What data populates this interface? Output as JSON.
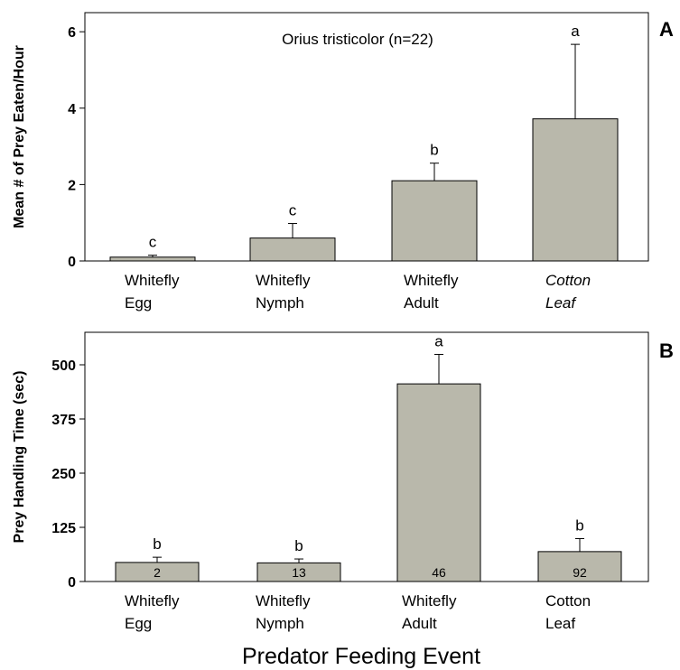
{
  "chart_data": [
    {
      "panel": "A",
      "type": "bar",
      "title": "Orius tristicolor (n=22)",
      "ylabel": "Mean # of Prey Eaten/Hour",
      "ylim": [
        0,
        6.5
      ],
      "yticks": [
        0,
        2,
        4,
        6
      ],
      "categories": [
        {
          "line1": "Whitefly",
          "line2": "Egg",
          "italic": false
        },
        {
          "line1": "Whitefly",
          "line2": "Nymph",
          "italic": false
        },
        {
          "line1": "Whitefly",
          "line2": "Adult",
          "italic": false
        },
        {
          "line1": "Cotton",
          "line2": "Leaf",
          "italic": true
        }
      ],
      "values": [
        0.1,
        0.6,
        2.1,
        3.72
      ],
      "errors": [
        0.05,
        0.38,
        0.46,
        1.95
      ],
      "letters": [
        "c",
        "c",
        "b",
        "a"
      ],
      "bar_color": "#b9b8ab"
    },
    {
      "panel": "B",
      "type": "bar",
      "title": "",
      "ylabel": "Prey Handling Time (sec)",
      "ylim": [
        0,
        575
      ],
      "yticks": [
        0,
        125,
        250,
        375,
        500
      ],
      "categories": [
        {
          "line1": "Whitefly",
          "line2": "Egg",
          "italic": false
        },
        {
          "line1": "Whitefly",
          "line2": "Nymph",
          "italic": false
        },
        {
          "line1": "Whitefly",
          "line2": "Adult",
          "italic": false
        },
        {
          "line1": "Cotton",
          "line2": "Leaf",
          "italic": false
        }
      ],
      "values": [
        44,
        43,
        456,
        69
      ],
      "errors": [
        12,
        9,
        68,
        30
      ],
      "letters": [
        "b",
        "b",
        "a",
        "b"
      ],
      "n_labels": [
        "2",
        "13",
        "46",
        "92"
      ],
      "bar_color": "#b9b8ab"
    }
  ],
  "x_title": "Predator Feeding Event"
}
